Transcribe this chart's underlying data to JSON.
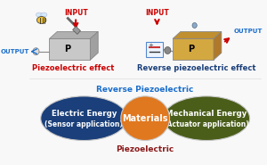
{
  "background_color": "#f8f8f8",
  "top_left_label": "Piezoelectric effect",
  "top_right_label": "Reverse piezoelectric effect",
  "input_label": "INPUT",
  "output_label": "OUTPUT",
  "reverse_piezo_label": "Reverse Piezoelectric",
  "piezo_label": "Piezoelectric",
  "left_ellipse_text1": "Electric Energy",
  "left_ellipse_text2": "(Sensor application)",
  "left_ellipse_color": "#1a3f7a",
  "center_ellipse_text": "Materials",
  "center_ellipse_color": "#e07820",
  "right_ellipse_text1": "Mechanical Energy",
  "right_ellipse_text2": "(Actuator application)",
  "right_ellipse_color": "#4a5e1a",
  "arrow_top_color": "#7ab820",
  "arrow_bottom_color": "#8b1a1a",
  "label_color_red": "#cc0000",
  "label_color_blue": "#1a3f7a",
  "input_color": "#cc0000",
  "output_color": "#1a6ecc",
  "reverse_piezo_color": "#1a6ecc",
  "device_left_color": "#c8c8c8",
  "device_right_color": "#d4a840",
  "battery_border": "#5588cc",
  "battery_bg": "#eef4ff",
  "wire_color": "#888888",
  "divider_color": "#dddddd"
}
